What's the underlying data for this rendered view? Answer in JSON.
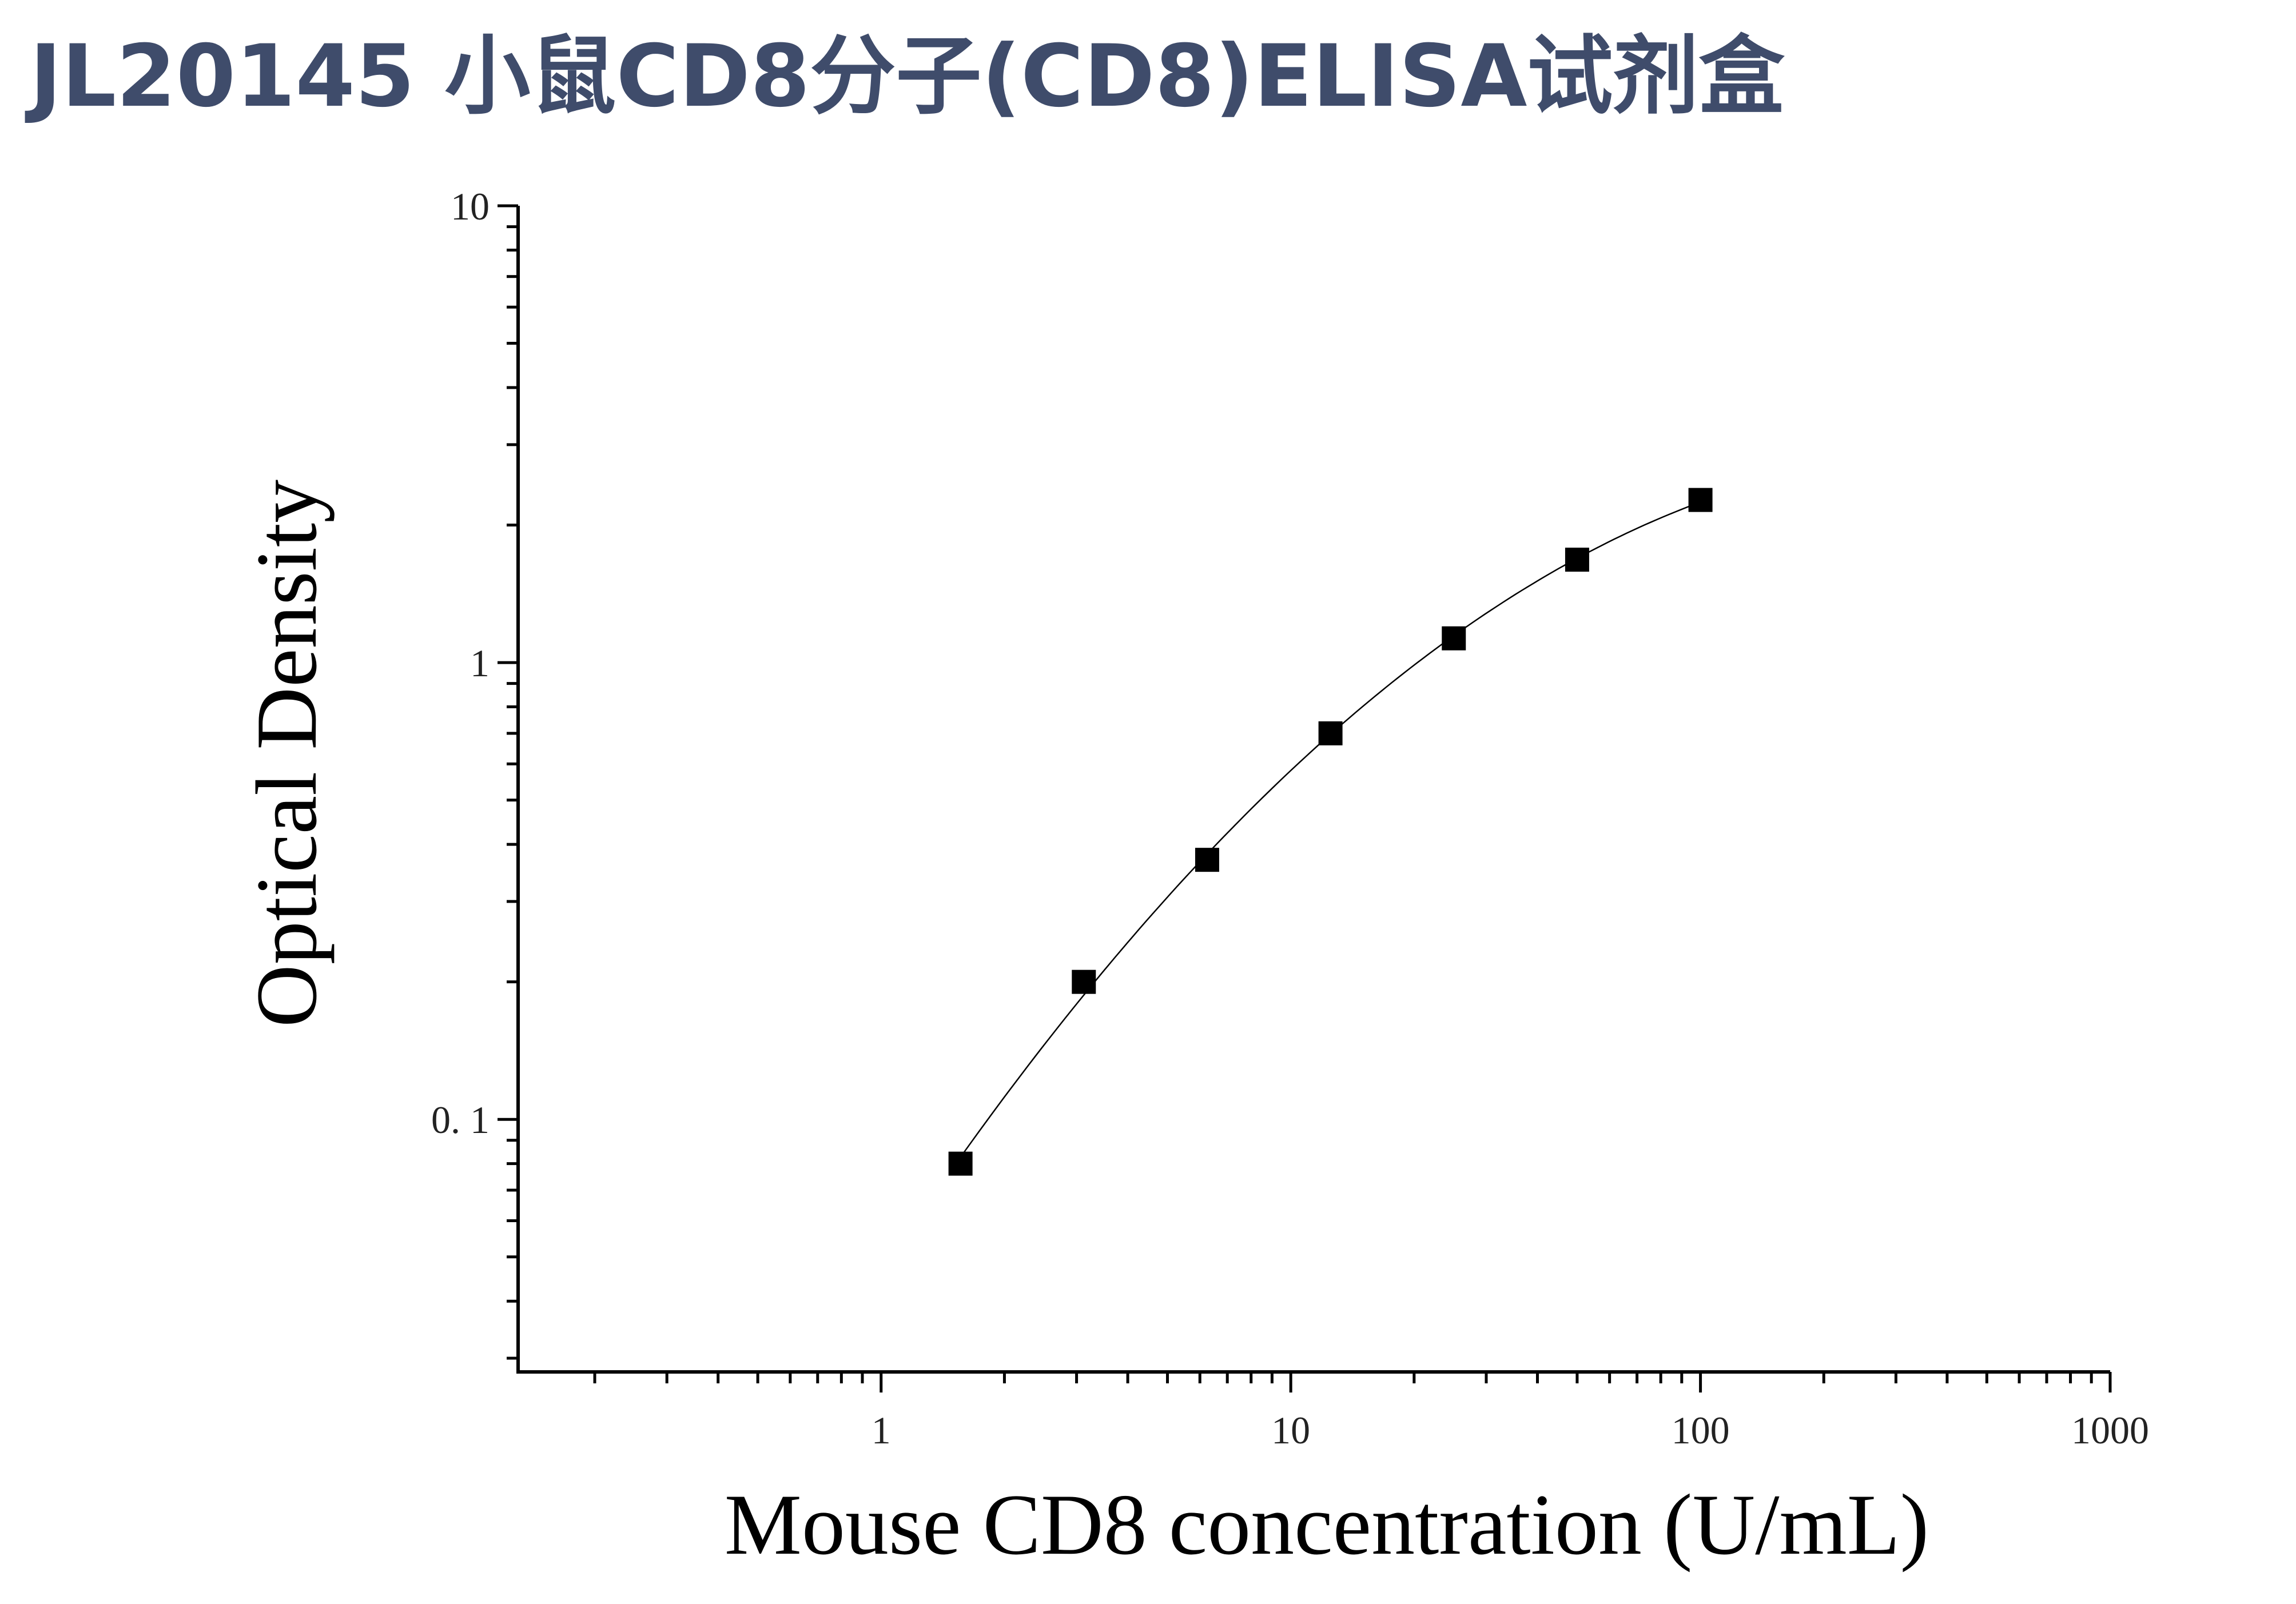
{
  "header": {
    "title": "JL20145 小鼠CD8分子(CD8)ELISA试剂盒"
  },
  "chart_data": {
    "type": "scatter",
    "title": "JL20145 小鼠CD8分子(CD8)ELISA试剂盒",
    "xlabel": "Mouse CD8 concentration (U/mL)",
    "ylabel": "Optical Density",
    "x_scale": "log",
    "y_scale": "log",
    "xlim": [
      0.13,
      1000
    ],
    "ylim": [
      0.028,
      10
    ],
    "x_ticks": [
      {
        "value": 1,
        "label": "1"
      },
      {
        "value": 10,
        "label": "10"
      },
      {
        "value": 100,
        "label": "100"
      },
      {
        "value": 1000,
        "label": "1000"
      }
    ],
    "y_ticks": [
      {
        "value": 0.1,
        "label": "0. 1"
      },
      {
        "value": 1,
        "label": "1"
      },
      {
        "value": 10,
        "label": "10"
      }
    ],
    "grid": false,
    "legend": "none",
    "marker": "square",
    "fit_curve": true,
    "series": [
      {
        "x": [
          1.5625,
          3.125,
          6.25,
          12.5,
          25,
          50,
          100
        ],
        "y": [
          0.08,
          0.2,
          0.37,
          0.7,
          1.13,
          1.68,
          2.27
        ]
      }
    ],
    "colors": {
      "title": "#3f4c6b",
      "axis": "#000000",
      "marker": "#000000"
    }
  }
}
